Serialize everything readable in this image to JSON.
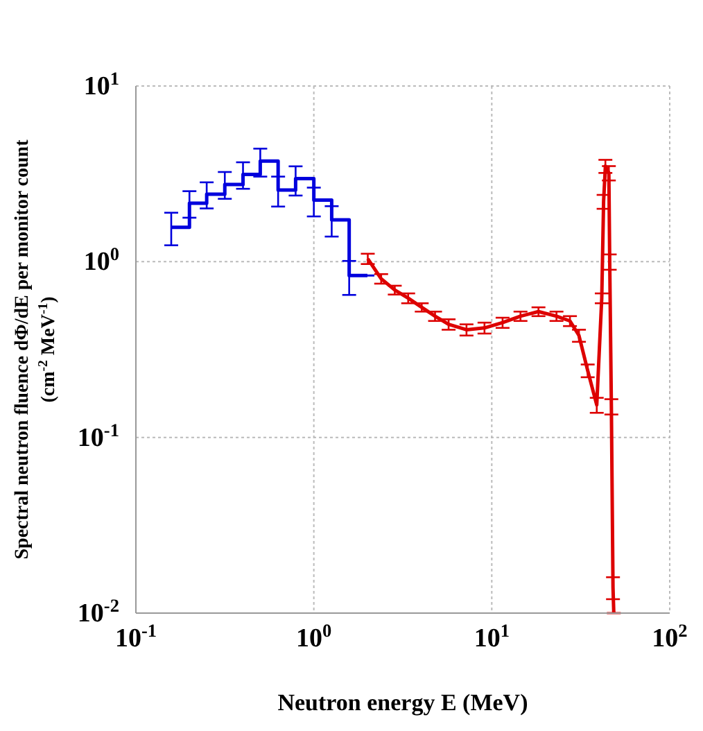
{
  "chart_data": {
    "type": "line",
    "xlabel": "Neutron energy E (MeV)",
    "ylabel": "Spectral neutron fluence dΦ/dE per monitor count (cm$^{-2}$ MeV$^{-1}$)",
    "log": "xy",
    "grid": true,
    "marker": "none",
    "line_style": "solid",
    "xlim": [
      0.1,
      100
    ],
    "xticks": [
      {
        "value": 0.1,
        "label": "10$^{-1}$"
      },
      {
        "value": 1,
        "label": "10$^{0}$"
      },
      {
        "value": 10,
        "label": "10$^{1}$"
      },
      {
        "value": 100,
        "label": "10$^{2}$"
      }
    ],
    "ylim": [
      0.01,
      10
    ],
    "yticks": [
      {
        "value": 0.01,
        "label": "10$^{-2}$"
      },
      {
        "value": 0.1,
        "label": "10$^{-1}$"
      },
      {
        "value": 1,
        "label": "10$^{0}$"
      },
      {
        "value": 10,
        "label": "10$^{1}$"
      }
    ],
    "series": [
      {
        "type": "step",
        "color": "#0000dd",
        "x": [
          0.158,
          0.2,
          0.25,
          0.316,
          0.4,
          0.5,
          0.63,
          0.79,
          1,
          1.26,
          1.58,
          2
        ],
        "values": [
          1.57,
          2.15,
          2.42,
          2.75,
          3.14,
          3.74,
          2.56,
          2.97,
          2.24,
          1.73,
          0.835,
          0.835
        ],
        "errors": [
          [
            1.24,
            1.9
          ],
          [
            1.78,
            2.52
          ],
          [
            2.01,
            2.83
          ],
          [
            2.28,
            3.24
          ],
          [
            2.6,
            3.68
          ],
          [
            3.05,
            4.4
          ],
          [
            2.06,
            3.05
          ],
          [
            2.38,
            3.49
          ],
          [
            1.81,
            2.64
          ],
          [
            1.39,
            2.07
          ],
          [
            0.647,
            1.01
          ],
          null
        ]
      },
      {
        "type": "line",
        "color": "#dd0000",
        "x": [
          2.01,
          2.39,
          2.85,
          3.39,
          4.04,
          4.8,
          5.72,
          7.21,
          9.1,
          11.5,
          14.5,
          18.3,
          23.1,
          27.5,
          30.9,
          34.6,
          38.9,
          41.5,
          42.5,
          43.5,
          45.5,
          46,
          47,
          48,
          48.5
        ],
        "values": [
          1.04,
          0.8,
          0.69,
          0.62,
          0.55,
          0.49,
          0.44,
          0.41,
          0.42,
          0.45,
          0.49,
          0.52,
          0.49,
          0.46,
          0.38,
          0.24,
          0.153,
          0.62,
          2.2,
          3.5,
          3.2,
          1.0,
          0.15,
          0.014,
          0.01
        ],
        "errors": [
          0.07,
          0.05,
          0.04,
          0.04,
          0.03,
          0.03,
          0.03,
          0.03,
          0.03,
          0.03,
          0.03,
          0.03,
          0.03,
          0.03,
          0.03,
          0.02,
          0.015,
          0.04,
          0.2,
          0.3,
          0.3,
          0.1,
          0.015,
          0.002,
          null
        ]
      }
    ]
  }
}
